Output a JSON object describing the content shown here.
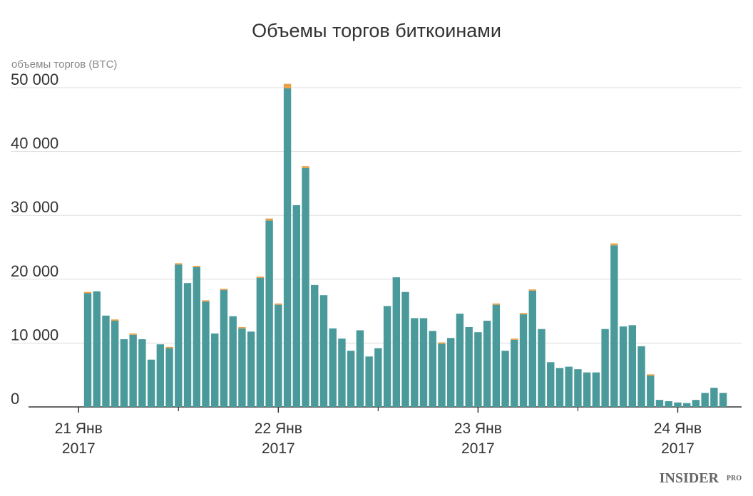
{
  "chart_data": {
    "type": "bar",
    "stacked": true,
    "title": "Объемы торгов биткоинами",
    "ylabel": "объемы торгов (BTC)",
    "categories": [
      null,
      null,
      null,
      null,
      null,
      null,
      null,
      null,
      null,
      null,
      null,
      null,
      null,
      null,
      null,
      null,
      null,
      null,
      null,
      null,
      null,
      null,
      null,
      null,
      null,
      null,
      null,
      null,
      null,
      null,
      null,
      null,
      null,
      null,
      null,
      null,
      null,
      null,
      null,
      null,
      null,
      null,
      null,
      null,
      null,
      null,
      null,
      null,
      null,
      null,
      null,
      null,
      null,
      null,
      null,
      null,
      null,
      null,
      null,
      null,
      null,
      null,
      null,
      null,
      null,
      null,
      null,
      null,
      null,
      null,
      null
    ],
    "series": [
      {
        "color": "#4a9a9b",
        "values": [
          17800,
          18100,
          14300,
          13500,
          10600,
          11300,
          10600,
          7400,
          9800,
          9200,
          22300,
          19400,
          21900,
          16500,
          11500,
          18300,
          14200,
          12300,
          11800,
          20200,
          29200,
          16000,
          49900,
          31600,
          37400,
          19100,
          17500,
          12300,
          10700,
          8800,
          12000,
          7900,
          9200,
          15800,
          20300,
          18000,
          13900,
          13900,
          11900,
          9900,
          10800,
          14600,
          12500,
          11700,
          13500,
          16000,
          8800,
          10500,
          14500,
          18200,
          12200,
          7000,
          6100,
          6300,
          5900,
          5400,
          5400,
          12200,
          25300,
          12600,
          12800,
          9500,
          4900,
          1100,
          900,
          700,
          600,
          1100,
          2200,
          3000,
          2200
        ]
      },
      {
        "color": "#e8a04a",
        "values": [
          200,
          0,
          0,
          200,
          0,
          200,
          0,
          0,
          0,
          200,
          200,
          0,
          200,
          200,
          0,
          200,
          0,
          200,
          0,
          200,
          300,
          200,
          700,
          0,
          300,
          0,
          0,
          0,
          0,
          0,
          0,
          0,
          0,
          0,
          0,
          0,
          0,
          0,
          0,
          200,
          0,
          0,
          0,
          0,
          0,
          200,
          0,
          200,
          200,
          200,
          0,
          0,
          0,
          0,
          0,
          0,
          0,
          0,
          300,
          0,
          0,
          0,
          200,
          0,
          0,
          0,
          0,
          0,
          0,
          0,
          0
        ]
      }
    ],
    "ylim": [
      0,
      50000
    ],
    "yticks": [
      0,
      {
        "value": 10000,
        "label": "10 000"
      },
      {
        "value": 20000,
        "label": "20 000"
      },
      {
        "value": 30000,
        "label": "30 000"
      },
      {
        "value": 40000,
        "label": "40 000"
      },
      {
        "value": 50000,
        "label": "50 000"
      }
    ],
    "xticks": [
      {
        "value": -1,
        "label": "21 Янв",
        "year": "2017"
      },
      {
        "value": 21,
        "label": "22 Янв",
        "year": "2017"
      },
      {
        "value": 43,
        "label": "23 Янв",
        "year": "2017"
      },
      {
        "value": 65,
        "label": "24 Янв",
        "year": "2017"
      }
    ],
    "xminorticks": [
      10,
      32,
      54
    ],
    "grid": true,
    "logo": {
      "main": "INSIDER",
      "sub": "PRO"
    }
  }
}
